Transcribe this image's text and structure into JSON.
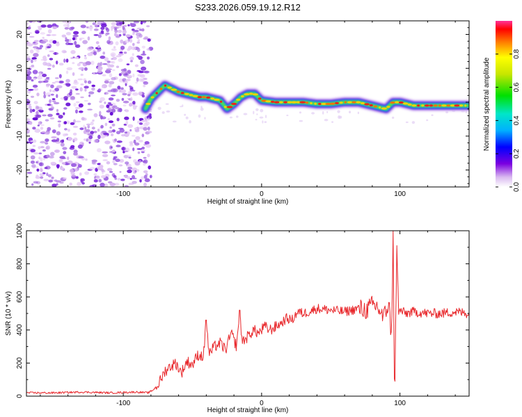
{
  "title": "S233.2026.059.19.12.R12",
  "chart_data": [
    {
      "type": "heatmap",
      "xlabel": "Height of straight line (km)",
      "ylabel": "Frequency (Hz)",
      "xlim": [
        -170,
        150
      ],
      "ylim": [
        -25,
        24
      ],
      "xticks": [
        -100,
        0,
        100
      ],
      "yticks": [
        -20,
        -10,
        0,
        10,
        20
      ],
      "noise_region_x": [
        -170,
        -83
      ],
      "ridge": {
        "x": [
          -84,
          -80,
          -75,
          -70,
          -65,
          -60,
          -55,
          -50,
          -45,
          -40,
          -35,
          -30,
          -25,
          -20,
          -15,
          -10,
          -5,
          0,
          10,
          20,
          30,
          40,
          50,
          60,
          70,
          80,
          85,
          90,
          95,
          100,
          110,
          120,
          130,
          140,
          150
        ],
        "y": [
          -2,
          1,
          3,
          5,
          4,
          3,
          2.5,
          2,
          1.5,
          1.5,
          1,
          0.5,
          -2,
          -0.5,
          1.5,
          2.5,
          2.5,
          0.5,
          0,
          0,
          0,
          -0.5,
          -0.5,
          0,
          0,
          -1,
          -1.5,
          -2,
          0,
          0,
          -1,
          -1,
          -1,
          -1,
          -1
        ]
      },
      "colorbar": {
        "label": "Normalized spectral amplitude",
        "range": [
          0,
          1
        ],
        "ticks": [
          "0.0",
          "0.2",
          "0.4",
          "0.6",
          "0.8"
        ]
      }
    },
    {
      "type": "line",
      "xlabel": "Height of straight line (km)",
      "ylabel": "SNR (10 * v/v)",
      "xlim": [
        -170,
        150
      ],
      "ylim": [
        0,
        1000
      ],
      "xticks": [
        -100,
        0,
        100
      ],
      "yticks": [
        0,
        200,
        400,
        600,
        800,
        1000
      ],
      "color": "#e8262a",
      "series": [
        {
          "name": "SNR",
          "x": [
            -170,
            -150,
            -130,
            -110,
            -90,
            -82,
            -78,
            -74,
            -70,
            -66,
            -62,
            -58,
            -54,
            -50,
            -46,
            -42,
            -40,
            -38,
            -34,
            -30,
            -26,
            -22,
            -18,
            -16,
            -14,
            -10,
            -6,
            -2,
            2,
            6,
            10,
            14,
            18,
            22,
            26,
            30,
            34,
            40,
            50,
            60,
            70,
            76,
            80,
            84,
            88,
            90,
            92,
            94,
            95,
            96,
            97,
            98,
            99,
            100,
            104,
            110,
            120,
            130,
            140,
            150
          ],
          "y": [
            20,
            20,
            25,
            20,
            25,
            20,
            40,
            80,
            150,
            180,
            200,
            140,
            210,
            190,
            250,
            240,
            460,
            250,
            300,
            320,
            280,
            380,
            300,
            520,
            330,
            360,
            400,
            380,
            420,
            400,
            420,
            440,
            470,
            460,
            510,
            500,
            510,
            530,
            520,
            510,
            530,
            520,
            550,
            540,
            470,
            520,
            560,
            340,
            1000,
            90,
            480,
            900,
            470,
            520,
            500,
            510,
            500,
            500,
            510,
            500
          ]
        }
      ]
    }
  ]
}
